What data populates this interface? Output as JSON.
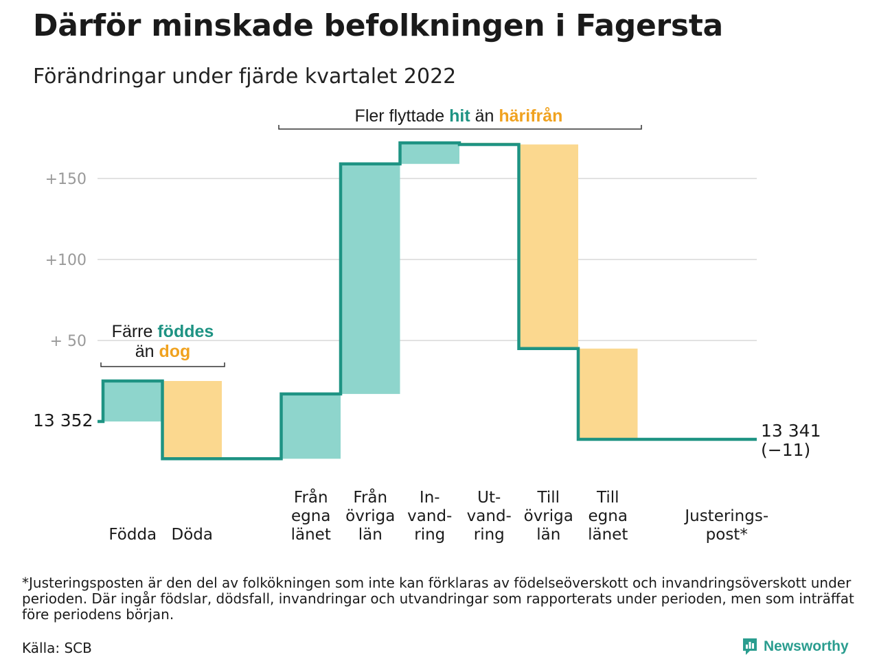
{
  "title": "Därför minskade befolkningen i Fagersta",
  "subtitle": "Förändringar under fjärde kvartalet 2022",
  "footnote": "*Justeringsposten är den del av folkökningen som inte kan förklaras av födelseöverskott och invandringsöverskott under perioden. Där ingår födslar, dödsfall, invandringar och utvandringar som rapporterats under perioden, men som inträffat före periodens början.",
  "source": "Källa: SCB",
  "brand": "Newsworthy",
  "colors": {
    "increase": "#8ed5cc",
    "decrease": "#fbd88f",
    "line": "#1e9383",
    "teal_text": "#1e9383",
    "orange_text": "#f0a21f",
    "grid": "#e2e2e2",
    "tick": "#999999"
  },
  "chart_data": {
    "type": "waterfall",
    "start": {
      "label": "13 352",
      "value": 13352
    },
    "end": {
      "label": "13 341",
      "change_label": "(−11)",
      "value": 13341
    },
    "y_axis": {
      "ticks": [
        50,
        100,
        150
      ],
      "tick_labels": [
        "+ 50",
        "+100",
        "+150"
      ],
      "range": [
        -25,
        175
      ]
    },
    "steps": [
      {
        "label": [
          "Födda"
        ],
        "delta": 25,
        "type": "increase"
      },
      {
        "label": [
          "Döda"
        ],
        "delta": -48,
        "type": "decrease"
      },
      {
        "label": [
          "Från",
          "egna",
          "länet"
        ],
        "delta": 40,
        "type": "increase"
      },
      {
        "label": [
          "Från",
          "övriga",
          "län"
        ],
        "delta": 142,
        "type": "increase"
      },
      {
        "label": [
          "In-",
          "vand-",
          "ring"
        ],
        "delta": 13,
        "type": "increase"
      },
      {
        "label": [
          "Ut-",
          "vand-",
          "ring"
        ],
        "delta": -1,
        "type": "decrease"
      },
      {
        "label": [
          "Till",
          "övriga",
          "län"
        ],
        "delta": -126,
        "type": "decrease"
      },
      {
        "label": [
          "Till",
          "egna",
          "länet"
        ],
        "delta": -56,
        "type": "decrease"
      },
      {
        "label": [
          "Justerings-",
          "post*"
        ],
        "delta": 0,
        "type": "increase"
      }
    ],
    "annotations": [
      {
        "parts": [
          [
            "Färre ",
            "plain"
          ],
          [
            "föddes",
            "teal"
          ],
          [
            "\nän ",
            "plain"
          ],
          [
            "dog",
            "orange"
          ]
        ]
      },
      {
        "parts": [
          [
            "Fler flyttade ",
            "plain"
          ],
          [
            "hit",
            "teal"
          ],
          [
            " än ",
            "plain"
          ],
          [
            "härifrån",
            "orange"
          ]
        ]
      }
    ],
    "grid": true,
    "legend": "none"
  }
}
